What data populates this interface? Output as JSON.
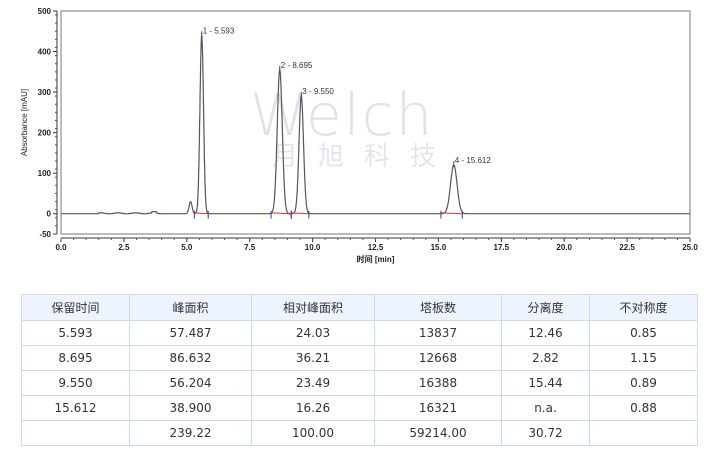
{
  "chart_data": {
    "type": "line",
    "title": "",
    "xlabel": "时间 [min]",
    "ylabel": "Absorbance [mAU]",
    "xlim": [
      0,
      25
    ],
    "ylim": [
      -50,
      500
    ],
    "xticks": [
      "0.0",
      "2.5",
      "5.0",
      "7.5",
      "10.0",
      "12.5",
      "15.0",
      "17.5",
      "20.0",
      "22.5",
      "25.0"
    ],
    "yticks": [
      "500",
      "400",
      "300",
      "200",
      "100",
      "0",
      "-50"
    ],
    "grid": false,
    "line_color": "#555555",
    "baseline_color": "#e03030",
    "marker_color": "#3a3ab0",
    "peaks": [
      {
        "label": "1 - 5.593",
        "rt": 5.593,
        "height": 440,
        "start": 5.3,
        "end": 5.85
      },
      {
        "label": "2 - 8.695",
        "rt": 8.695,
        "height": 355,
        "start": 8.35,
        "end": 9.15
      },
      {
        "label": "3 - 9.550",
        "rt": 9.55,
        "height": 290,
        "start": 9.15,
        "end": 9.85
      },
      {
        "label": "4 - 15.612",
        "rt": 15.612,
        "height": 120,
        "start": 15.1,
        "end": 15.95
      }
    ],
    "minor_peaks": [
      {
        "rt": 5.15,
        "height": 30
      }
    ]
  },
  "watermark": {
    "text": "Welch",
    "subtext": "月旭科技"
  },
  "table": {
    "headers": [
      "保留时间",
      "峰面积",
      "相对峰面积",
      "塔板数",
      "分离度",
      "不对称度"
    ],
    "rows": [
      [
        "5.593",
        "57.487",
        "24.03",
        "13837",
        "12.46",
        "0.85"
      ],
      [
        "8.695",
        "86.632",
        "36.21",
        "12668",
        "2.82",
        "1.15"
      ],
      [
        "9.550",
        "56.204",
        "23.49",
        "16388",
        "15.44",
        "0.89"
      ],
      [
        "15.612",
        "38.900",
        "16.26",
        "16321",
        "n.a.",
        "0.88"
      ],
      [
        "",
        "239.22",
        "100.00",
        "59214.00",
        "30.72",
        ""
      ]
    ]
  }
}
